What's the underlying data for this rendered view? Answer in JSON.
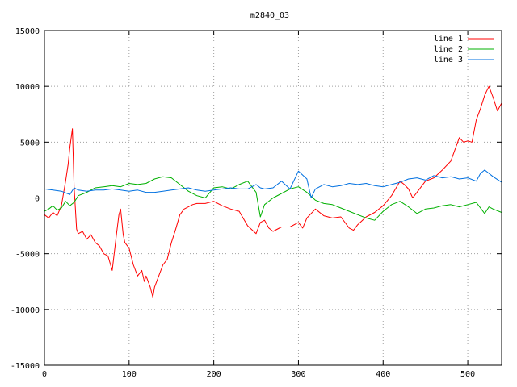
{
  "chart_data": {
    "type": "line",
    "title": "m2840_03",
    "xlabel": "",
    "ylabel": "",
    "xlim": [
      0,
      540
    ],
    "ylim": [
      -15000,
      15000
    ],
    "xticks": [
      0,
      100,
      200,
      300,
      400,
      500
    ],
    "yticks": [
      -15000,
      -10000,
      -5000,
      0,
      5000,
      10000,
      15000
    ],
    "grid": true,
    "legend_position": "top-right",
    "series": [
      {
        "name": "line 1",
        "color": "#ff0000",
        "x": [
          0,
          5,
          10,
          15,
          20,
          25,
          28,
          30,
          33,
          35,
          38,
          40,
          45,
          50,
          55,
          60,
          65,
          70,
          75,
          80,
          85,
          88,
          90,
          93,
          95,
          100,
          105,
          110,
          115,
          118,
          120,
          125,
          128,
          130,
          135,
          140,
          145,
          150,
          155,
          160,
          165,
          170,
          175,
          180,
          190,
          200,
          210,
          220,
          230,
          240,
          250,
          255,
          260,
          265,
          270,
          280,
          290,
          300,
          305,
          310,
          320,
          330,
          340,
          350,
          360,
          365,
          370,
          380,
          390,
          400,
          410,
          420,
          425,
          430,
          435,
          440,
          450,
          460,
          470,
          480,
          490,
          495,
          500,
          505,
          510,
          515,
          520,
          525,
          530,
          535,
          540
        ],
        "y": [
          -1500,
          -1800,
          -1300,
          -1600,
          -700,
          1500,
          3000,
          4500,
          6200,
          1000,
          -2800,
          -3200,
          -3000,
          -3700,
          -3300,
          -4000,
          -4300,
          -5000,
          -5200,
          -6500,
          -3300,
          -1500,
          -1000,
          -3300,
          -4000,
          -4500,
          -6000,
          -7000,
          -6500,
          -7500,
          -7000,
          -8000,
          -8900,
          -8000,
          -7000,
          -6000,
          -5500,
          -4000,
          -2800,
          -1500,
          -1000,
          -800,
          -600,
          -500,
          -500,
          -300,
          -700,
          -1000,
          -1200,
          -2500,
          -3200,
          -2200,
          -2000,
          -2700,
          -3000,
          -2600,
          -2600,
          -2200,
          -2700,
          -1800,
          -1000,
          -1600,
          -1800,
          -1700,
          -2700,
          -2900,
          -2400,
          -1700,
          -1300,
          -700,
          200,
          1500,
          1200,
          800,
          0,
          500,
          1500,
          1800,
          2500,
          3300,
          5400,
          5000,
          5100,
          5000,
          7000,
          8000,
          9200,
          10000,
          9000,
          7800,
          8500
        ]
      },
      {
        "name": "line 2",
        "color": "#00b000",
        "x": [
          0,
          5,
          10,
          15,
          20,
          25,
          30,
          35,
          40,
          50,
          60,
          70,
          80,
          90,
          100,
          110,
          120,
          130,
          140,
          150,
          160,
          170,
          180,
          190,
          200,
          210,
          220,
          230,
          240,
          250,
          255,
          260,
          270,
          280,
          290,
          300,
          310,
          320,
          330,
          340,
          350,
          360,
          370,
          380,
          390,
          400,
          410,
          420,
          430,
          440,
          450,
          460,
          470,
          480,
          490,
          500,
          510,
          520,
          525,
          530,
          540
        ],
        "y": [
          -1200,
          -1000,
          -700,
          -1100,
          -900,
          -300,
          -700,
          -400,
          200,
          500,
          900,
          1000,
          1100,
          1000,
          1300,
          1200,
          1300,
          1700,
          1900,
          1800,
          1200,
          600,
          200,
          0,
          900,
          1000,
          800,
          1200,
          1500,
          500,
          -1700,
          -600,
          0,
          400,
          800,
          1000,
          500,
          -200,
          -500,
          -600,
          -900,
          -1200,
          -1500,
          -1800,
          -2000,
          -1200,
          -600,
          -300,
          -800,
          -1400,
          -1000,
          -900,
          -700,
          -600,
          -800,
          -600,
          -400,
          -1400,
          -800,
          -1000,
          -1300
        ]
      },
      {
        "name": "line 3",
        "color": "#0070e0",
        "x": [
          0,
          10,
          20,
          30,
          35,
          40,
          50,
          60,
          70,
          80,
          90,
          100,
          110,
          120,
          130,
          140,
          150,
          160,
          170,
          180,
          190,
          200,
          210,
          220,
          230,
          240,
          250,
          255,
          260,
          270,
          280,
          290,
          300,
          310,
          315,
          320,
          330,
          340,
          350,
          360,
          370,
          380,
          390,
          400,
          410,
          420,
          430,
          440,
          450,
          460,
          470,
          480,
          490,
          500,
          510,
          515,
          520,
          530,
          540
        ],
        "y": [
          800,
          700,
          600,
          300,
          900,
          700,
          600,
          700,
          700,
          800,
          700,
          600,
          700,
          500,
          500,
          600,
          700,
          800,
          900,
          700,
          600,
          700,
          800,
          900,
          800,
          800,
          1200,
          900,
          800,
          900,
          1500,
          800,
          2400,
          1700,
          0,
          800,
          1200,
          1000,
          1100,
          1300,
          1200,
          1300,
          1100,
          1000,
          1200,
          1400,
          1700,
          1800,
          1600,
          2000,
          1800,
          1900,
          1700,
          1800,
          1500,
          2200,
          2500,
          1900,
          1400
        ]
      }
    ]
  }
}
